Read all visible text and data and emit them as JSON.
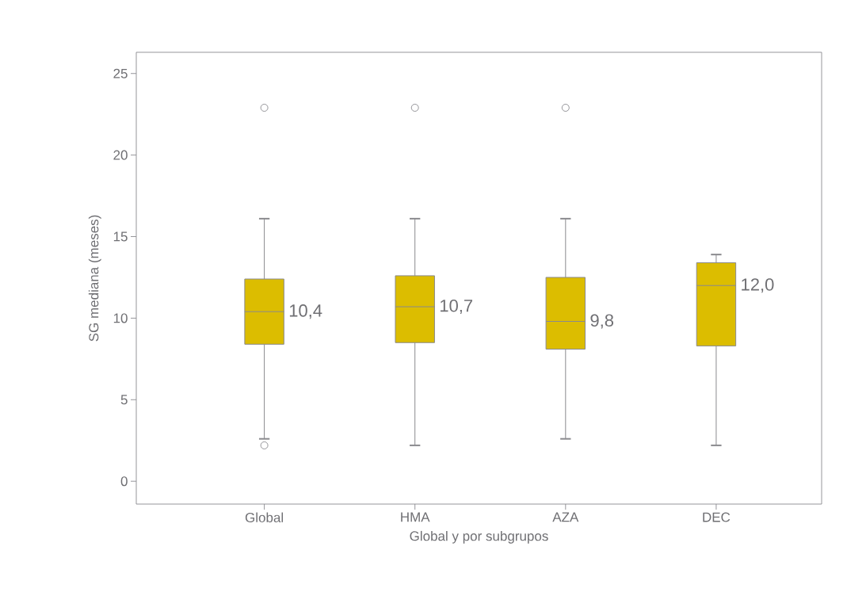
{
  "chart_data": {
    "type": "box",
    "xlabel": "Global y por subgrupos",
    "ylabel": "SG mediana (meses)",
    "categories": [
      "Global",
      "HMA",
      "AZA",
      "DEC"
    ],
    "boxes": [
      {
        "low": 2.6,
        "q1": 8.4,
        "median": 10.4,
        "q3": 12.4,
        "high": 16.1,
        "outliers": [
          2.2,
          22.9
        ]
      },
      {
        "low": 2.2,
        "q1": 8.5,
        "median": 10.7,
        "q3": 12.6,
        "high": 16.1,
        "outliers": [
          22.9
        ]
      },
      {
        "low": 2.6,
        "q1": 8.1,
        "median": 9.8,
        "q3": 12.5,
        "high": 16.1,
        "outliers": [
          22.9
        ]
      },
      {
        "low": 2.2,
        "q1": 8.3,
        "median": 12.0,
        "q3": 13.4,
        "high": 13.9
      }
    ],
    "color": "#dcbd00",
    "ylim": [
      -1.4,
      26.3
    ],
    "yticks": [
      0,
      5,
      10,
      15,
      20,
      25
    ],
    "annotations": [
      "10,4",
      "10,7",
      "9,8",
      "12,0"
    ]
  }
}
